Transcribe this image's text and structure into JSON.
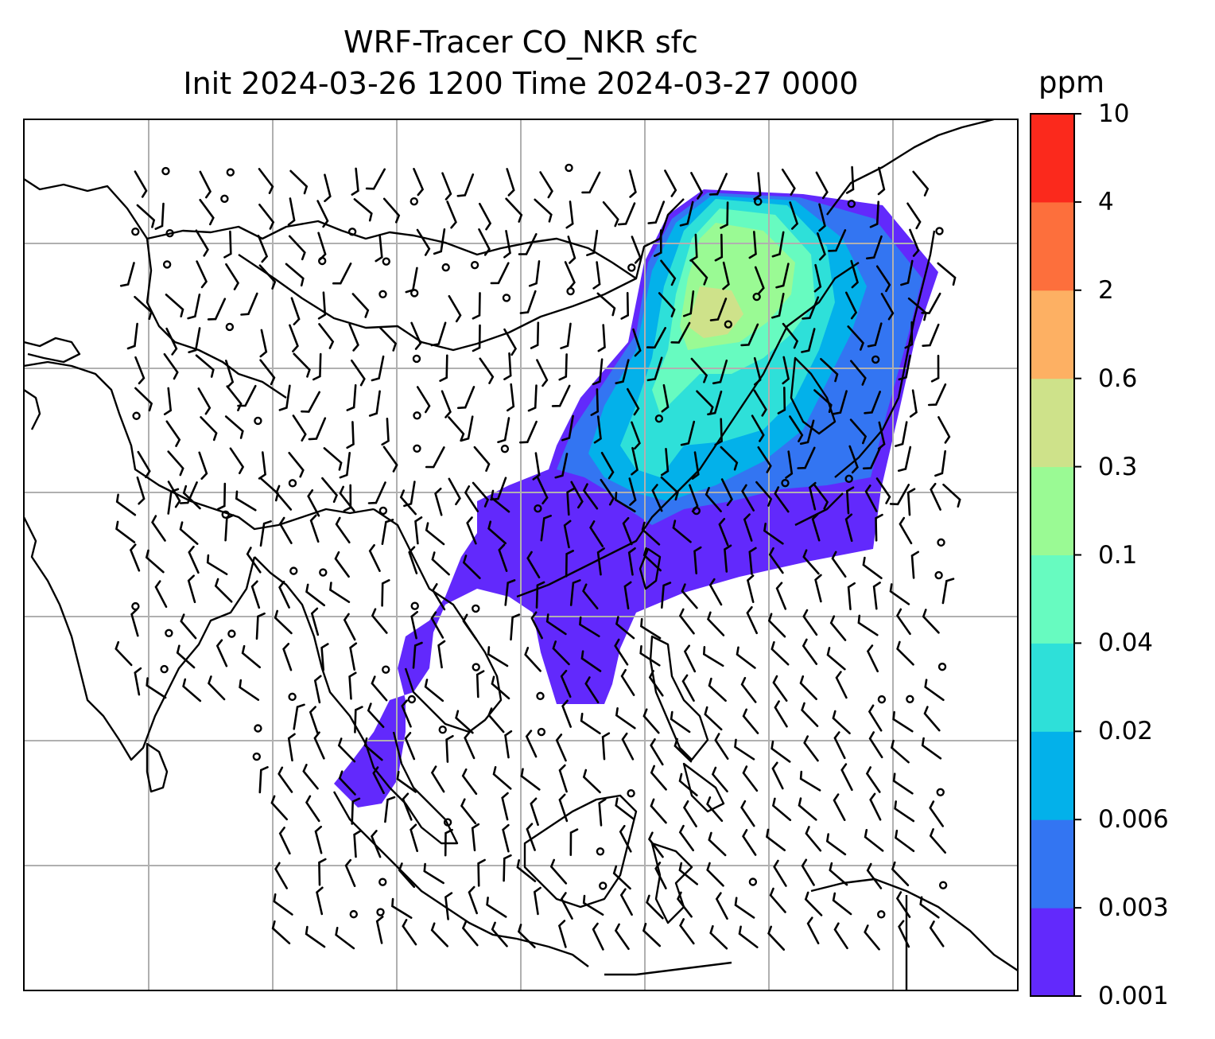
{
  "title": {
    "line1": "WRF-Tracer CO_NKR sfc",
    "line2": "Init 2024-03-26 1200 Time 2024-03-27 0000"
  },
  "colorbar": {
    "unit": "ppm",
    "levels": [
      "0.001",
      "0.003",
      "0.006",
      "0.02",
      "0.04",
      "0.1",
      "0.3",
      "0.6",
      "2",
      "4",
      "10"
    ],
    "colors": [
      "#6229fc",
      "#3375f2",
      "#03b1ea",
      "#2ee0d9",
      "#67fbc0",
      "#9afa94",
      "#cee28a",
      "#fdb063",
      "#fd6f3c",
      "#fb291c"
    ]
  },
  "map": {
    "gridlines": true,
    "gridline_color": "#b0b0b0",
    "coastline_color": "#000000",
    "barb_color": "#000000"
  }
}
